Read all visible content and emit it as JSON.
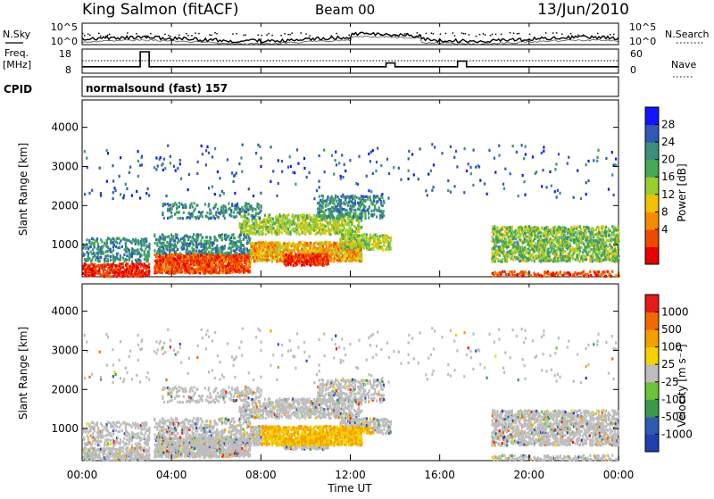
{
  "header": {
    "station": "King Salmon (fitACF)",
    "beam": "Beam 00",
    "date": "13/Jun/2010"
  },
  "side_labels": {
    "nsky": "N.Sky",
    "nsearch": "N.Search",
    "freq": "Freq.",
    "freq_unit": "[MHz]",
    "nave": "Nave",
    "cpid": "CPID"
  },
  "mode_text": "normalsound (fast) 157",
  "colors": {
    "power_scale": [
      "#1414ff",
      "#2f59b5",
      "#3a8f7e",
      "#45a853",
      "#9acd32",
      "#f2c200",
      "#f58c00",
      "#f04a00",
      "#e60000"
    ],
    "velocity_scale": [
      "#1f3fae",
      "#2d5bb0",
      "#3a9a4a",
      "#6dc43a",
      "#bdbdbd",
      "#f4d200",
      "#f4a000",
      "#f06a00",
      "#e61a1a"
    ]
  },
  "chart_data": [
    {
      "type": "line",
      "id": "nsky_nsearch",
      "y_tick_labels": [
        "10^5",
        "10^0"
      ],
      "right_tick_labels": [
        "10^5",
        "10^0"
      ]
    },
    {
      "type": "line",
      "id": "freq_nave",
      "left_tick_labels": [
        "18",
        "8"
      ],
      "right_tick_labels": [
        "60",
        "0"
      ],
      "freq_steps": [
        {
          "time_h": 0.0,
          "mhz": 10
        },
        {
          "time_h": 2.6,
          "mhz": 18
        },
        {
          "time_h": 3.0,
          "mhz": 10
        },
        {
          "time_h": 13.6,
          "mhz": 12
        },
        {
          "time_h": 14.0,
          "mhz": 10
        },
        {
          "time_h": 16.8,
          "mhz": 13
        },
        {
          "time_h": 17.2,
          "mhz": 10
        }
      ]
    },
    {
      "type": "heatmap",
      "id": "power",
      "ylabel": "Slant Range [km]",
      "yticks": [
        1000,
        2000,
        3000,
        4000
      ],
      "ylim": [
        180,
        4700
      ],
      "xlim_hours": [
        0,
        24
      ],
      "colorbar_label": "Power [dB]",
      "colorbar_ticks": [
        "28",
        "24",
        "20",
        "16",
        "12",
        "8",
        "4"
      ]
    },
    {
      "type": "heatmap",
      "id": "velocity",
      "ylabel": "Slant Range [km]",
      "yticks": [
        1000,
        2000,
        3000,
        4000
      ],
      "ylim": [
        180,
        4700
      ],
      "xlim_hours": [
        0,
        24
      ],
      "colorbar_label": "Velocity [m s⁻¹]",
      "colorbar_ticks": [
        "1000",
        "500",
        "100",
        "25",
        "-25",
        "-100",
        "-500",
        "-1000"
      ]
    }
  ],
  "x_axis": {
    "tick_labels": [
      "00:00",
      "04:00",
      "08:00",
      "12:00",
      "16:00",
      "20:00",
      "00:00"
    ],
    "label": "Time UT"
  }
}
